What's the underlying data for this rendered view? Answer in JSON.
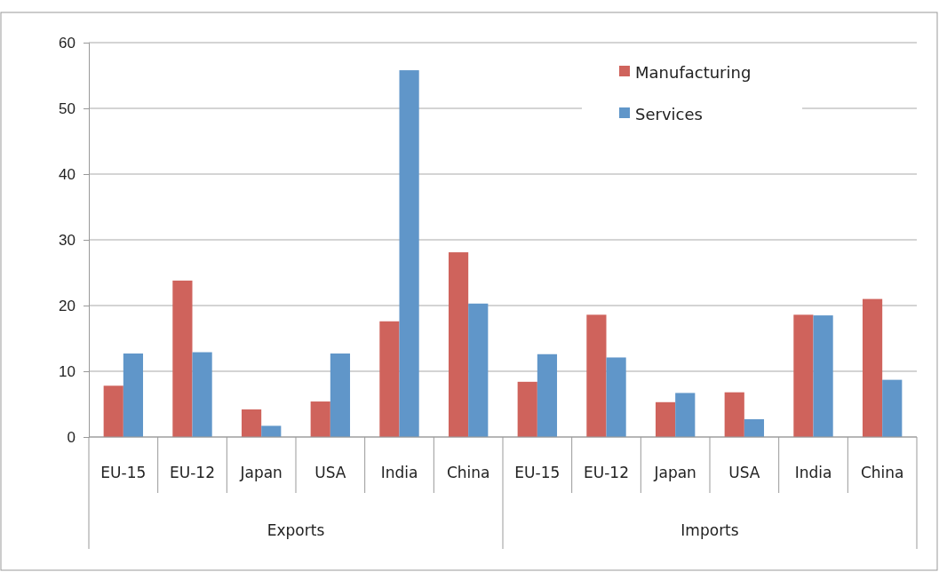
{
  "chart_data": {
    "type": "bar",
    "categories": [
      "EU-15",
      "EU-12",
      "Japan",
      "USA",
      "India",
      "China",
      "EU-15",
      "EU-12",
      "Japan",
      "USA",
      "India",
      "China"
    ],
    "series": [
      {
        "name": "Manufacturing",
        "color": "#cf635c",
        "values": [
          7.8,
          23.8,
          4.2,
          5.4,
          17.6,
          28.1,
          8.4,
          18.6,
          5.3,
          6.8,
          18.6,
          21.0
        ]
      },
      {
        "name": "Services",
        "color": "#6096c9",
        "values": [
          12.7,
          12.9,
          1.7,
          12.7,
          55.8,
          20.3,
          12.6,
          12.1,
          6.7,
          2.7,
          18.5,
          8.7
        ]
      }
    ],
    "annotations": [
      "Exports",
      "Imports"
    ],
    "ylim": [
      0,
      60
    ],
    "yticks": [
      0,
      10,
      20,
      30,
      40,
      50,
      60
    ],
    "grid": "y",
    "legend": "top right"
  }
}
